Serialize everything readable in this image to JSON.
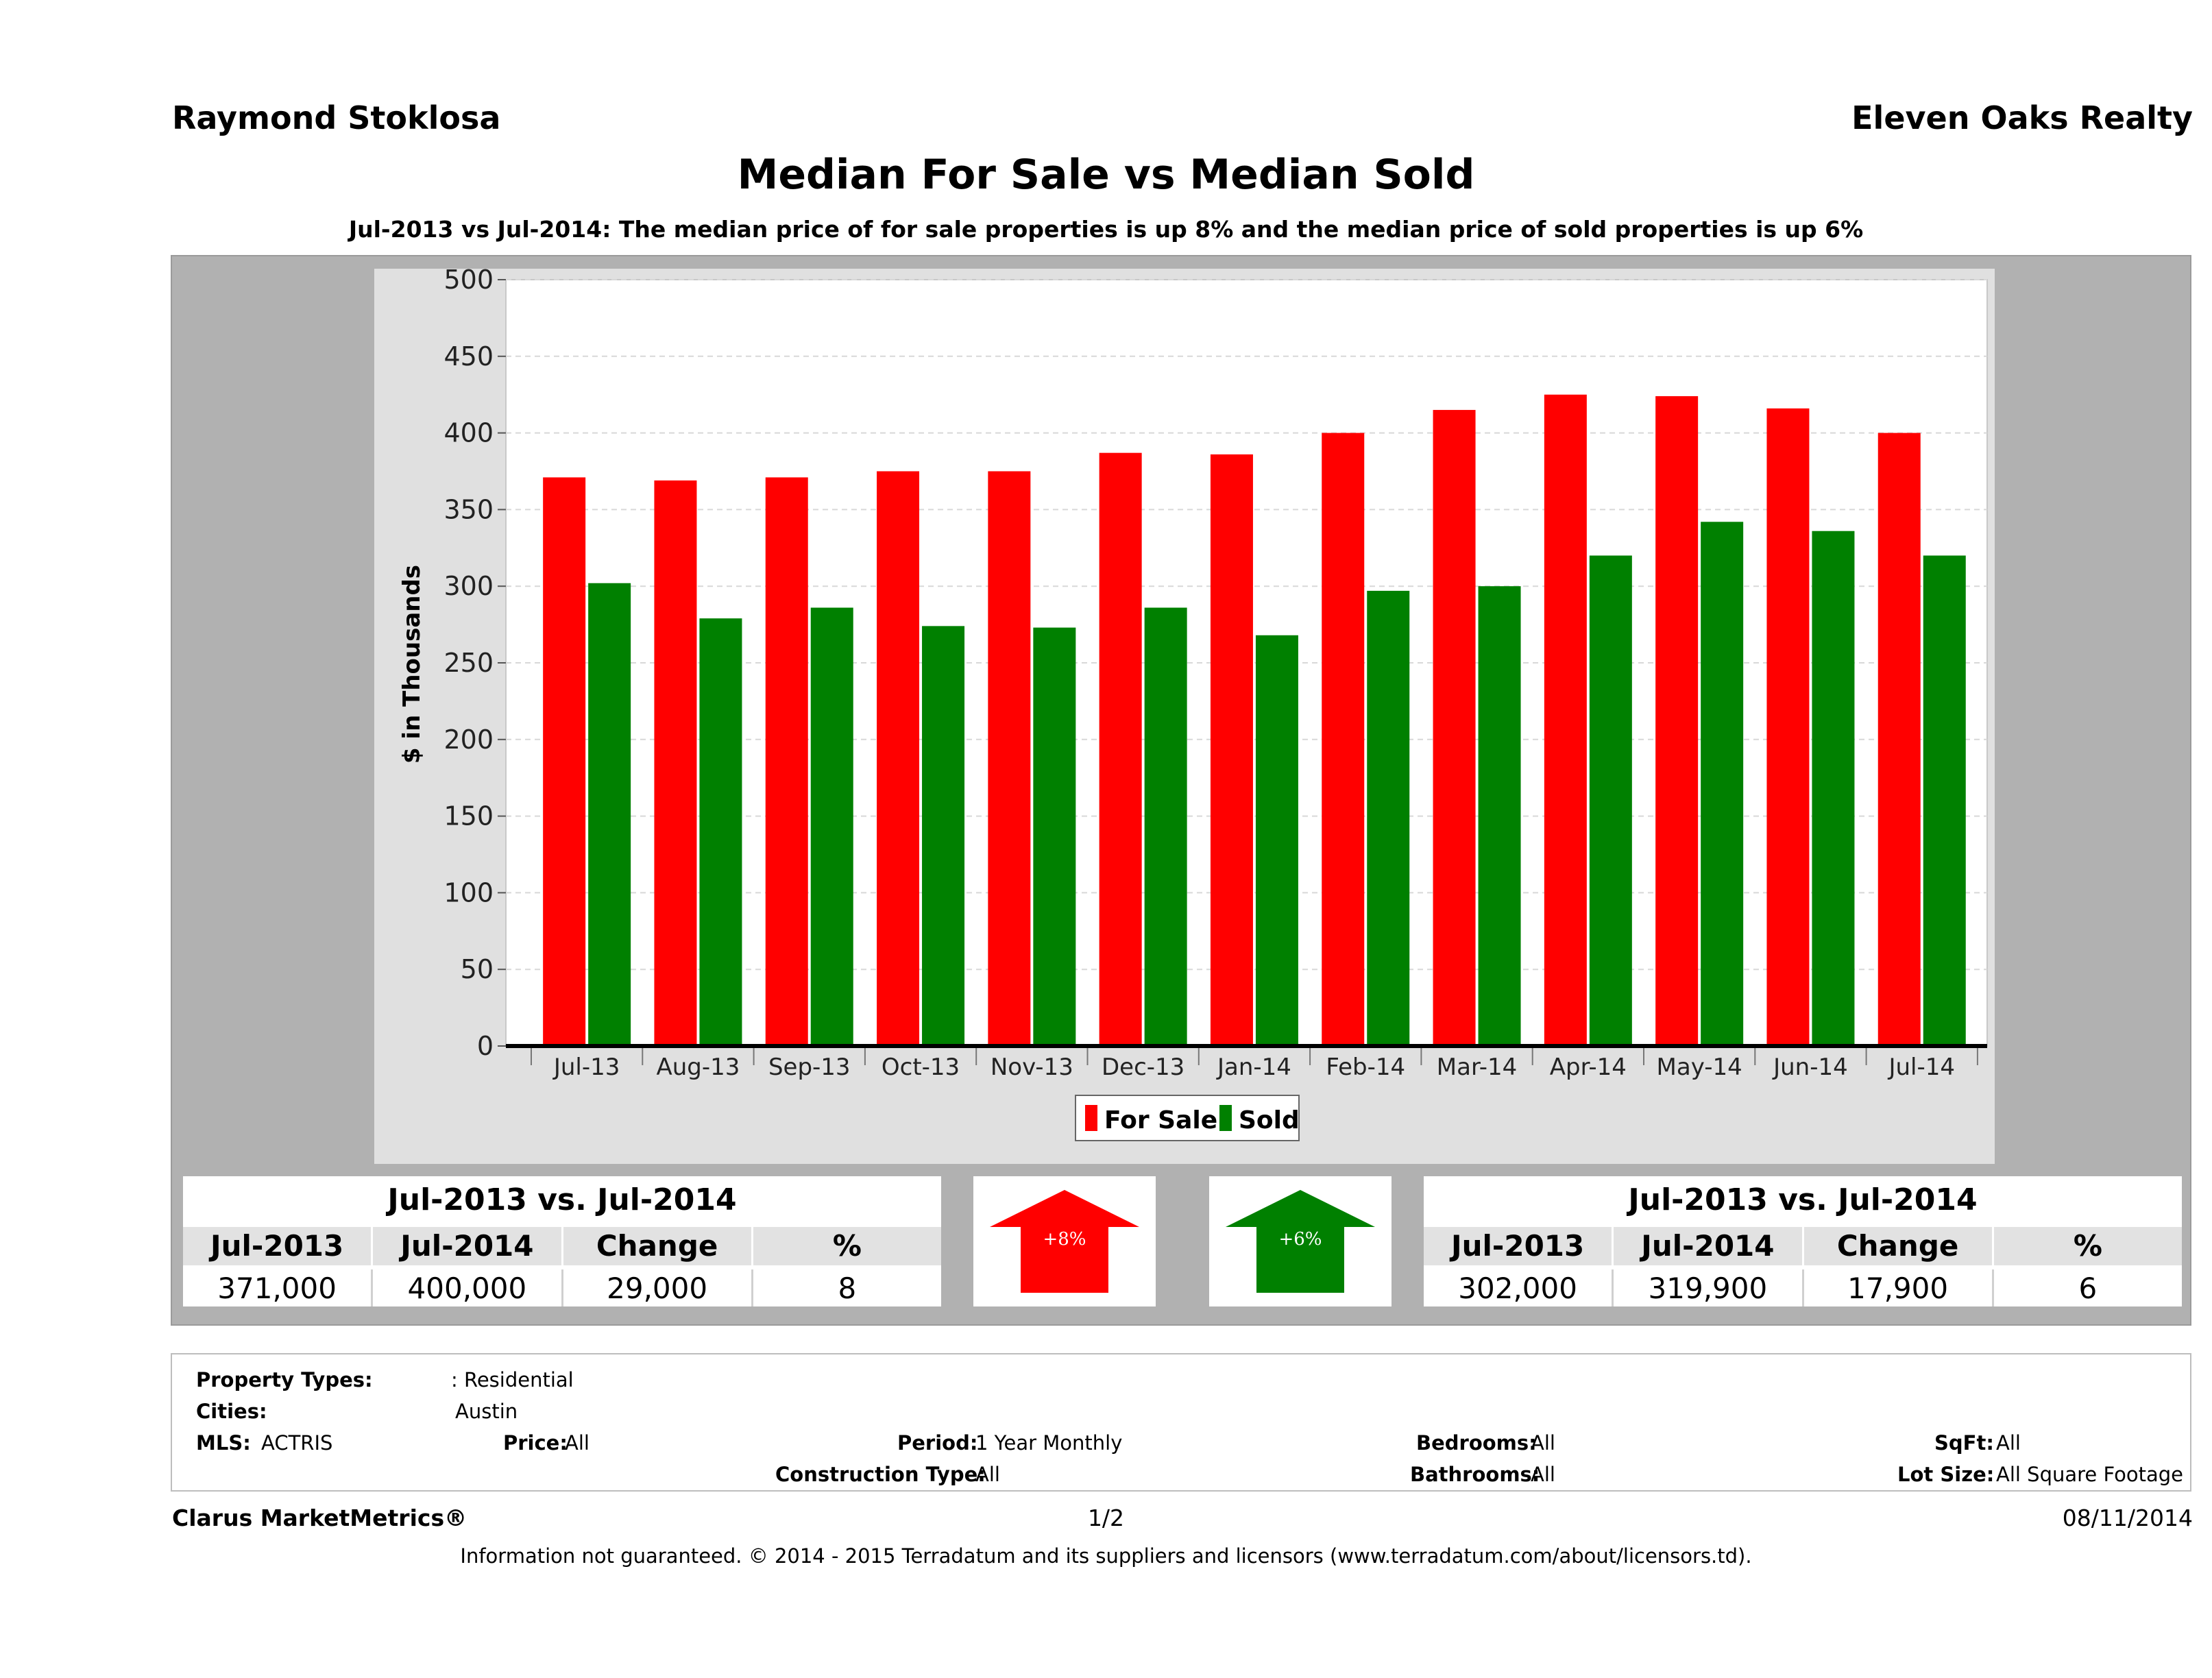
{
  "header": {
    "agent_name": "Raymond Stoklosa",
    "company_name": "Eleven Oaks Realty"
  },
  "colors": {
    "for_sale": "#ff0000",
    "sold": "#008000",
    "panel_bg": "#b1b1b1"
  },
  "chart_data": {
    "type": "bar",
    "title": "Median For Sale vs Median Sold",
    "subtitle": "Jul-2013 vs Jul-2014: The median price of for sale properties is up 8% and the median price of sold properties is up 6%",
    "ylabel": "$ in Thousands",
    "xlabel": "",
    "ylim": [
      0,
      500
    ],
    "yticks": [
      "0",
      "50",
      "100",
      "150",
      "200",
      "250",
      "300",
      "350",
      "400",
      "450",
      "500"
    ],
    "grid": true,
    "legend_placement": "bottom-center",
    "categories": [
      "Jul-13",
      "Aug-13",
      "Sep-13",
      "Oct-13",
      "Nov-13",
      "Dec-13",
      "Jan-14",
      "Feb-14",
      "Mar-14",
      "Apr-14",
      "May-14",
      "Jun-14",
      "Jul-14"
    ],
    "series": [
      {
        "name": "For Sale",
        "values": [
          371,
          369,
          371,
          375,
          375,
          387,
          386,
          400,
          415,
          425,
          424,
          416,
          400
        ]
      },
      {
        "name": "Sold",
        "values": [
          302,
          279,
          286,
          274,
          273,
          286,
          268,
          297,
          300,
          320,
          342,
          336,
          320
        ]
      }
    ]
  },
  "for_sale_table": {
    "title": "Jul-2013 vs. Jul-2014",
    "headers": [
      "Jul-2013",
      "Jul-2014",
      "Change",
      "%"
    ],
    "values": [
      "371,000",
      "400,000",
      "29,000",
      "8"
    ]
  },
  "sold_table": {
    "title": "Jul-2013 vs. Jul-2014",
    "headers": [
      "Jul-2013",
      "Jul-2014",
      "Change",
      "%"
    ],
    "values": [
      "302,000",
      "319,900",
      "17,900",
      "6"
    ]
  },
  "for_sale_arrow": {
    "label": "+8%",
    "direction": "up",
    "icon": "up-arrow-icon"
  },
  "sold_arrow": {
    "label": "+6%",
    "direction": "up",
    "icon": "up-arrow-icon"
  },
  "filters": {
    "property_types_label": "Property Types:",
    "property_types_value": ": Residential",
    "cities_label": "Cities:",
    "cities_value": "Austin",
    "mls_label": "MLS:",
    "mls_value": "ACTRIS",
    "price_label": "Price:",
    "price_value": "All",
    "period_label": "Period:",
    "period_value": "1 Year Monthly",
    "bedrooms_label": "Bedrooms:",
    "bedrooms_value": "All",
    "sqft_label": "SqFt:",
    "sqft_value": "All",
    "construction_label": "Construction Type:",
    "construction_value": "All",
    "bathrooms_label": "Bathrooms:",
    "bathrooms_value": "All",
    "lot_size_label": "Lot Size:",
    "lot_size_value": "All Square Footage"
  },
  "footer": {
    "brand": "Clarus MarketMetrics®",
    "page": "1/2",
    "date": "08/11/2014",
    "disclaimer": "Information not guaranteed. © 2014 - 2015 Terradatum and its suppliers and licensors (www.terradatum.com/about/licensors.td)."
  }
}
